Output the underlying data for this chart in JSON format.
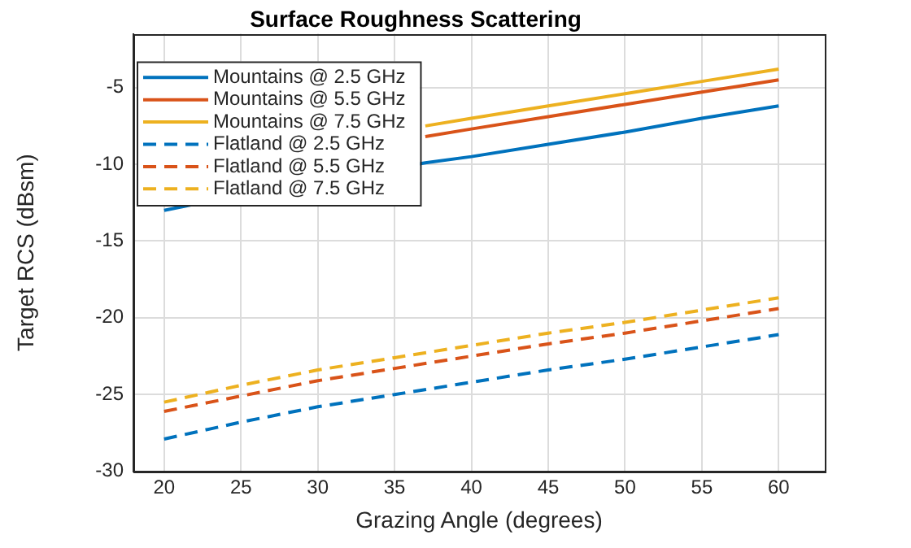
{
  "chart_data": {
    "type": "line",
    "title": "Surface Roughness Scattering",
    "xlabel": "Grazing Angle (degrees)",
    "ylabel": "Target RCS (dBsm)",
    "xlim": [
      18,
      63
    ],
    "xticks": [
      20,
      25,
      30,
      35,
      40,
      45,
      50,
      55,
      60
    ],
    "ylim": [
      -30,
      -1.5
    ],
    "yticks": [
      -30,
      -25,
      -20,
      -15,
      -10,
      -5
    ],
    "grid": true,
    "legend": "top left",
    "marker": "none",
    "series": [
      {
        "name": "Mountains @ 2.5 GHz",
        "color": "#0072bd",
        "line_style": "solid",
        "x": [
          20,
          22,
          37,
          40,
          45,
          50,
          55,
          60
        ],
        "values": [
          -13.0,
          -12.6,
          -9.9,
          -9.5,
          -8.7,
          -7.9,
          -7.0,
          -6.2
        ]
      },
      {
        "name": "Mountains @ 5.5 GHz",
        "color": "#d95319",
        "line_style": "solid",
        "x": [
          37,
          40,
          45,
          50,
          55,
          60
        ],
        "values": [
          -8.2,
          -7.7,
          -6.9,
          -6.1,
          -5.3,
          -4.5
        ]
      },
      {
        "name": "Mountains @ 7.5 GHz",
        "color": "#edb120",
        "line_style": "solid",
        "x": [
          37,
          40,
          45,
          50,
          55,
          60
        ],
        "values": [
          -7.5,
          -7.0,
          -6.2,
          -5.4,
          -4.6,
          -3.8
        ]
      },
      {
        "name": "Flatland @ 2.5 GHz",
        "color": "#0072bd",
        "line_style": "dashed",
        "x": [
          20,
          25,
          30,
          35,
          40,
          45,
          50,
          55,
          60
        ],
        "values": [
          -27.9,
          -26.8,
          -25.8,
          -25.0,
          -24.2,
          -23.4,
          -22.7,
          -21.9,
          -21.1
        ]
      },
      {
        "name": "Flatland @ 5.5 GHz",
        "color": "#d95319",
        "line_style": "dashed",
        "x": [
          20,
          25,
          30,
          35,
          40,
          45,
          50,
          55,
          60
        ],
        "values": [
          -26.1,
          -25.1,
          -24.1,
          -23.3,
          -22.5,
          -21.7,
          -21.0,
          -20.2,
          -19.4
        ]
      },
      {
        "name": "Flatland @ 7.5 GHz",
        "color": "#edb120",
        "line_style": "dashed",
        "x": [
          20,
          25,
          30,
          35,
          40,
          45,
          50,
          55,
          60
        ],
        "values": [
          -25.5,
          -24.4,
          -23.4,
          -22.6,
          -21.8,
          -21.0,
          -20.3,
          -19.5,
          -18.7
        ]
      }
    ]
  }
}
